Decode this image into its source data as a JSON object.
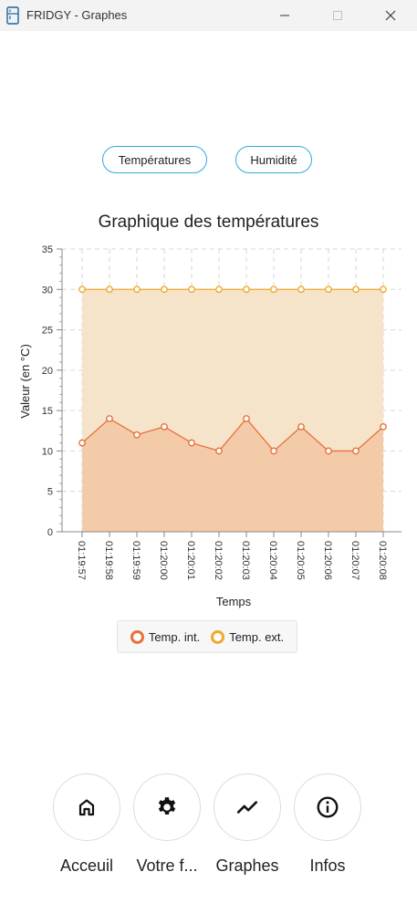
{
  "window": {
    "title": "FRIDGY - Graphes"
  },
  "tabs": {
    "temperatures": "Températures",
    "humidity": "Humidité"
  },
  "colors": {
    "accent": "#32a9df",
    "interior": "#e8703a",
    "exterior": "#f0a92e"
  },
  "chart_data": {
    "type": "area",
    "title": "Graphique des températures",
    "xlabel": "Temps",
    "ylabel": "Valeur (en °C)",
    "ylim": [
      0,
      35
    ],
    "yticks": [
      0,
      5,
      10,
      15,
      20,
      25,
      30,
      35
    ],
    "grid": true,
    "legend_position": "bottom",
    "categories": [
      "01:19:57",
      "01:19:58",
      "01:19:59",
      "01:20:00",
      "01:20:01",
      "01:20:02",
      "01:20:03",
      "01:20:04",
      "01:20:05",
      "01:20:06",
      "01:20:07",
      "01:20:08"
    ],
    "series": [
      {
        "name": "Temp. int.",
        "color": "#e8703a",
        "values": [
          11,
          14,
          12,
          13,
          11,
          10,
          14,
          10,
          13,
          10,
          10,
          13
        ]
      },
      {
        "name": "Temp. ext.",
        "color": "#f0a92e",
        "values": [
          30,
          30,
          30,
          30,
          30,
          30,
          30,
          30,
          30,
          30,
          30,
          30
        ]
      }
    ]
  },
  "nav": {
    "home": {
      "label": "Acceuil",
      "icon": "home-icon"
    },
    "fridge": {
      "label": "Votre f...",
      "icon": "gear-icon"
    },
    "graphs": {
      "label": "Graphes",
      "icon": "trend-icon"
    },
    "info": {
      "label": "Infos",
      "icon": "info-icon"
    }
  }
}
